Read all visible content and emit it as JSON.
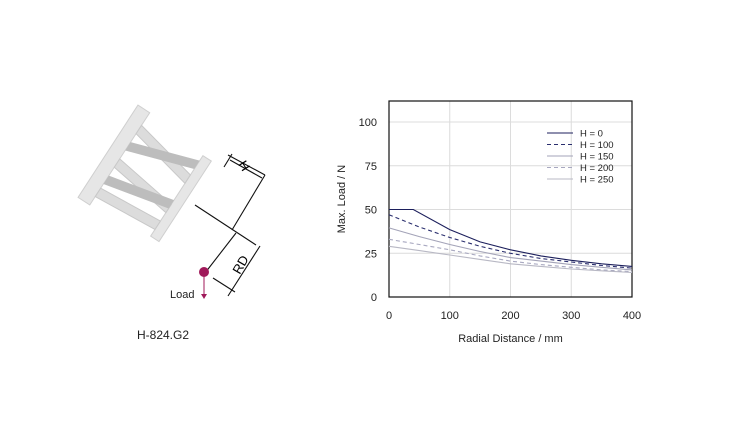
{
  "diagram": {
    "product_label": "H-824.G2",
    "dimension_h": "H",
    "dimension_rd": "RD",
    "load_label": "Load",
    "load_color": "#a0195a"
  },
  "chart_data": {
    "type": "line",
    "xlabel": "Radial Distance / mm",
    "ylabel": "Max. Load / N",
    "xlim": [
      0,
      400
    ],
    "ylim": [
      0,
      112
    ],
    "xticks": [
      0,
      100,
      200,
      300,
      400
    ],
    "yticks": [
      0,
      25,
      50,
      75,
      100
    ],
    "grid": true,
    "legend_position": "top-right",
    "series": [
      {
        "name": "H = 0",
        "color": "#1c1f5c",
        "dash": false,
        "x": [
          0,
          40,
          100,
          150,
          200,
          250,
          300,
          350,
          400
        ],
        "y": [
          50,
          50,
          38.5,
          31.5,
          27,
          23.5,
          21,
          19,
          17.5
        ]
      },
      {
        "name": "H = 100",
        "color": "#2a2e6e",
        "dash": true,
        "x": [
          0,
          50,
          100,
          150,
          200,
          250,
          300,
          350,
          400
        ],
        "y": [
          47,
          40,
          34,
          29,
          25,
          22,
          20,
          18,
          16.5
        ]
      },
      {
        "name": "H = 150",
        "color": "#a3a3b8",
        "dash": false,
        "x": [
          0,
          50,
          100,
          150,
          200,
          250,
          300,
          350,
          400
        ],
        "y": [
          39.5,
          34.5,
          30,
          26,
          22.5,
          20.5,
          18.5,
          17,
          15.5
        ]
      },
      {
        "name": "H = 200",
        "color": "#a8a8c0",
        "dash": true,
        "x": [
          0,
          50,
          100,
          150,
          200,
          250,
          300,
          350,
          400
        ],
        "y": [
          33,
          30,
          27,
          23.5,
          20.5,
          18.5,
          17,
          15.5,
          14.5
        ]
      },
      {
        "name": "H = 250",
        "color": "#b8b8c4",
        "dash": false,
        "x": [
          0,
          50,
          100,
          150,
          200,
          250,
          300,
          350,
          400
        ],
        "y": [
          29,
          26.5,
          24,
          21.5,
          19,
          17.5,
          16,
          15,
          14
        ]
      }
    ]
  }
}
